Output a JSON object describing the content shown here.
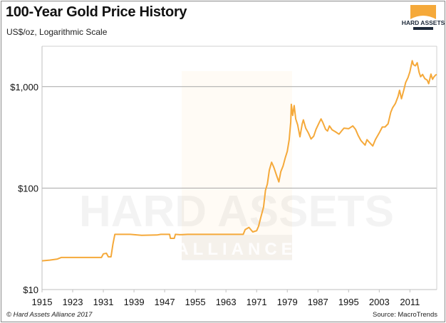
{
  "title": "100-Year Gold Price History",
  "subtitle": "US$/oz, Logarithmic Scale",
  "footer": {
    "copyright": "© Hard Assets Alliance 2017",
    "source": "Source: MacroTrends"
  },
  "logo": {
    "text": "HARD ASSETS",
    "subtext": "ALLIANCE",
    "color": "#f5a93a"
  },
  "watermark": {
    "line1": "HARD ASSETS",
    "line2": "ALLIANCE"
  },
  "chart_data": {
    "type": "line",
    "title": "100-Year Gold Price History",
    "subtitle": "US$/oz, Logarithmic Scale",
    "xlabel": "",
    "ylabel": "",
    "y_scale": "log",
    "xlim": [
      1915,
      2018
    ],
    "ylim": [
      10,
      2500
    ],
    "x_ticks": [
      1915,
      1923,
      1931,
      1939,
      1947,
      1955,
      1963,
      1971,
      1979,
      1987,
      1995,
      2003,
      2011
    ],
    "x_tick_labels": [
      "1915",
      "1923",
      "1931",
      "1939",
      "1947",
      "1955",
      "1963",
      "1971",
      "1979",
      "1987",
      "1995",
      "2003",
      "2011"
    ],
    "y_ticks": [
      10,
      100,
      1000
    ],
    "y_tick_labels": [
      "$10",
      "$100",
      "$1,000"
    ],
    "grid": "horizontal",
    "line_color": "#f5a93a",
    "series": [
      {
        "points": [
          [
            1915,
            19.2
          ],
          [
            1917,
            19.5
          ],
          [
            1919,
            20.0
          ],
          [
            1920,
            20.7
          ],
          [
            1930.5,
            20.7
          ],
          [
            1931,
            22.5
          ],
          [
            1931.8,
            22.8
          ],
          [
            1932.3,
            21.0
          ],
          [
            1933,
            21.0
          ],
          [
            1933.5,
            28
          ],
          [
            1934,
            35
          ],
          [
            1938,
            35
          ],
          [
            1941,
            34.2
          ],
          [
            1945,
            34.5
          ],
          [
            1946,
            35
          ],
          [
            1948.3,
            35
          ],
          [
            1948.5,
            32
          ],
          [
            1949.5,
            32
          ],
          [
            1949.8,
            35
          ],
          [
            1951,
            34.7
          ],
          [
            1953,
            35
          ],
          [
            1967.5,
            35
          ],
          [
            1968,
            39
          ],
          [
            1969,
            41
          ],
          [
            1970,
            37
          ],
          [
            1971,
            38
          ],
          [
            1971.5,
            42
          ],
          [
            1972,
            50
          ],
          [
            1972.8,
            65
          ],
          [
            1973.3,
            95
          ],
          [
            1973.8,
            110
          ],
          [
            1974.3,
            150
          ],
          [
            1974.9,
            180
          ],
          [
            1975.5,
            160
          ],
          [
            1976.3,
            130
          ],
          [
            1976.8,
            115
          ],
          [
            1977.3,
            145
          ],
          [
            1977.9,
            165
          ],
          [
            1978.5,
            200
          ],
          [
            1979,
            230
          ],
          [
            1979.5,
            300
          ],
          [
            1979.9,
            450
          ],
          [
            1980.05,
            670
          ],
          [
            1980.4,
            520
          ],
          [
            1980.8,
            650
          ],
          [
            1981.2,
            480
          ],
          [
            1981.7,
            420
          ],
          [
            1982.3,
            320
          ],
          [
            1982.9,
            430
          ],
          [
            1983.2,
            470
          ],
          [
            1983.8,
            390
          ],
          [
            1984.5,
            350
          ],
          [
            1985.2,
            305
          ],
          [
            1985.9,
            325
          ],
          [
            1986.5,
            380
          ],
          [
            1987.3,
            440
          ],
          [
            1987.8,
            480
          ],
          [
            1988.3,
            440
          ],
          [
            1989,
            380
          ],
          [
            1989.5,
            365
          ],
          [
            1990,
            410
          ],
          [
            1990.7,
            375
          ],
          [
            1991.5,
            360
          ],
          [
            1992.5,
            340
          ],
          [
            1993.3,
            370
          ],
          [
            1993.8,
            390
          ],
          [
            1995,
            385
          ],
          [
            1996.1,
            410
          ],
          [
            1996.8,
            380
          ],
          [
            1997.5,
            330
          ],
          [
            1998.2,
            295
          ],
          [
            1999.3,
            265
          ],
          [
            1999.8,
            300
          ],
          [
            2000.5,
            280
          ],
          [
            2001.3,
            260
          ],
          [
            2002,
            300
          ],
          [
            2003,
            350
          ],
          [
            2003.8,
            400
          ],
          [
            2004.5,
            400
          ],
          [
            2005.3,
            430
          ],
          [
            2006,
            560
          ],
          [
            2006.5,
            620
          ],
          [
            2007.2,
            680
          ],
          [
            2007.9,
            800
          ],
          [
            2008.3,
            920
          ],
          [
            2008.8,
            760
          ],
          [
            2009.4,
            920
          ],
          [
            2009.9,
            1100
          ],
          [
            2010.5,
            1230
          ],
          [
            2011,
            1400
          ],
          [
            2011.6,
            1800
          ],
          [
            2011.9,
            1650
          ],
          [
            2012.4,
            1600
          ],
          [
            2012.9,
            1720
          ],
          [
            2013.4,
            1380
          ],
          [
            2013.8,
            1250
          ],
          [
            2014.3,
            1320
          ],
          [
            2014.9,
            1200
          ],
          [
            2015.5,
            1160
          ],
          [
            2015.9,
            1070
          ],
          [
            2016.5,
            1330
          ],
          [
            2016.9,
            1180
          ],
          [
            2017.3,
            1250
          ],
          [
            2017.7,
            1300
          ],
          [
            2018,
            1320
          ]
        ]
      }
    ]
  }
}
